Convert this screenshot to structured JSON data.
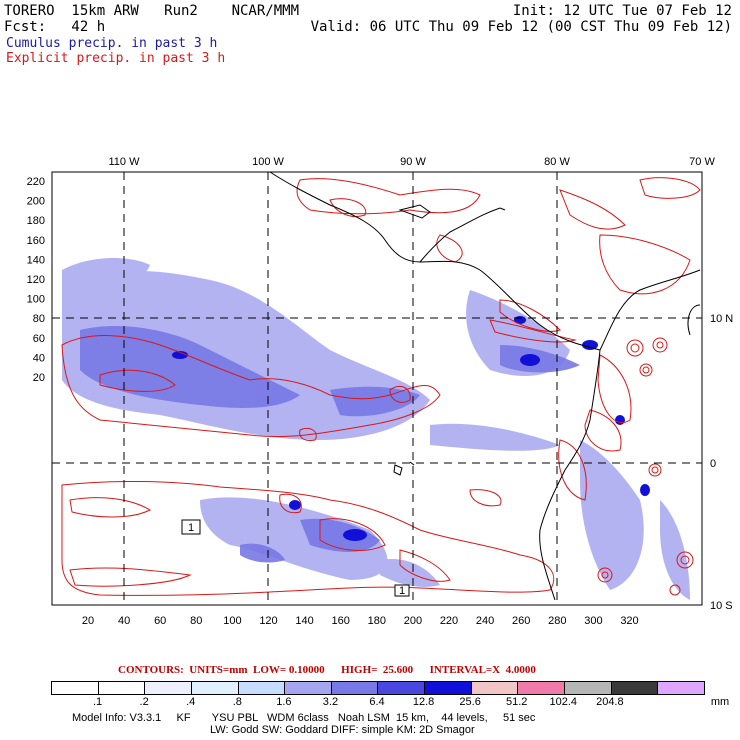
{
  "header": {
    "line1_left": "TORERO  15km ARW   Run2    NCAR/MMM",
    "line1_right": "Init: 12 UTC Tue 07 Feb 12",
    "line2_left": "Fcst:   42 h",
    "line2_right": "Valid: 06 UTC Thu 09 Feb 12 (00 CST Thu 09 Feb 12)",
    "cumulus_label": "Cumulus precip. in past 3 h",
    "explicit_label": "Explicit precip. in past 3 h"
  },
  "map": {
    "lon_labels": [
      "110 W",
      "100 W",
      "90 W",
      "80 W",
      "70 W"
    ],
    "lat_labels": [
      "10 N",
      "0",
      "10 S"
    ],
    "y_ticks": [
      "220",
      "200",
      "180",
      "160",
      "140",
      "120",
      "100",
      "80",
      "60",
      "40",
      "20"
    ],
    "x_ticks": [
      "20",
      "40",
      "60",
      "80",
      "100",
      "120",
      "140",
      "160",
      "180",
      "200",
      "220",
      "240",
      "260",
      "280",
      "300",
      "320"
    ],
    "box_labels": [
      "1",
      "1"
    ]
  },
  "contours": {
    "text": "CONTOURS:  UNITS=mm  LOW= 0.10000      HIGH=  25.600      INTERVAL=X  4.0000"
  },
  "colorbar": {
    "colors": [
      "#ffffff",
      "#ffffff",
      "#eef0ff",
      "#e0f0ff",
      "#c6ddff",
      "#a6a6f0",
      "#7878e6",
      "#4848e0",
      "#1010d8",
      "#f2c6c6",
      "#f07aaa",
      "#b6b6b6",
      "#3a3a3a",
      "#dfa6ff"
    ],
    "labels": [
      ".1",
      ".2",
      ".4",
      ".8",
      "1.6",
      "3.2",
      "6.4",
      "12.8",
      "25.6",
      "51.2",
      "102.4",
      "204.8"
    ],
    "unit": "mm"
  },
  "footer": {
    "line1": "Model Info: V3.3.1     KF       YSU PBL   WDM 6class   Noah LSM  15 km,    44 levels,     51 sec",
    "line2": "LW: Godd SW: Goddard DIFF: simple KM: 2D Smagor"
  },
  "colors": {
    "cumulus": "#1a1aa6",
    "explicit": "#d81818",
    "contour": "#c00000"
  }
}
